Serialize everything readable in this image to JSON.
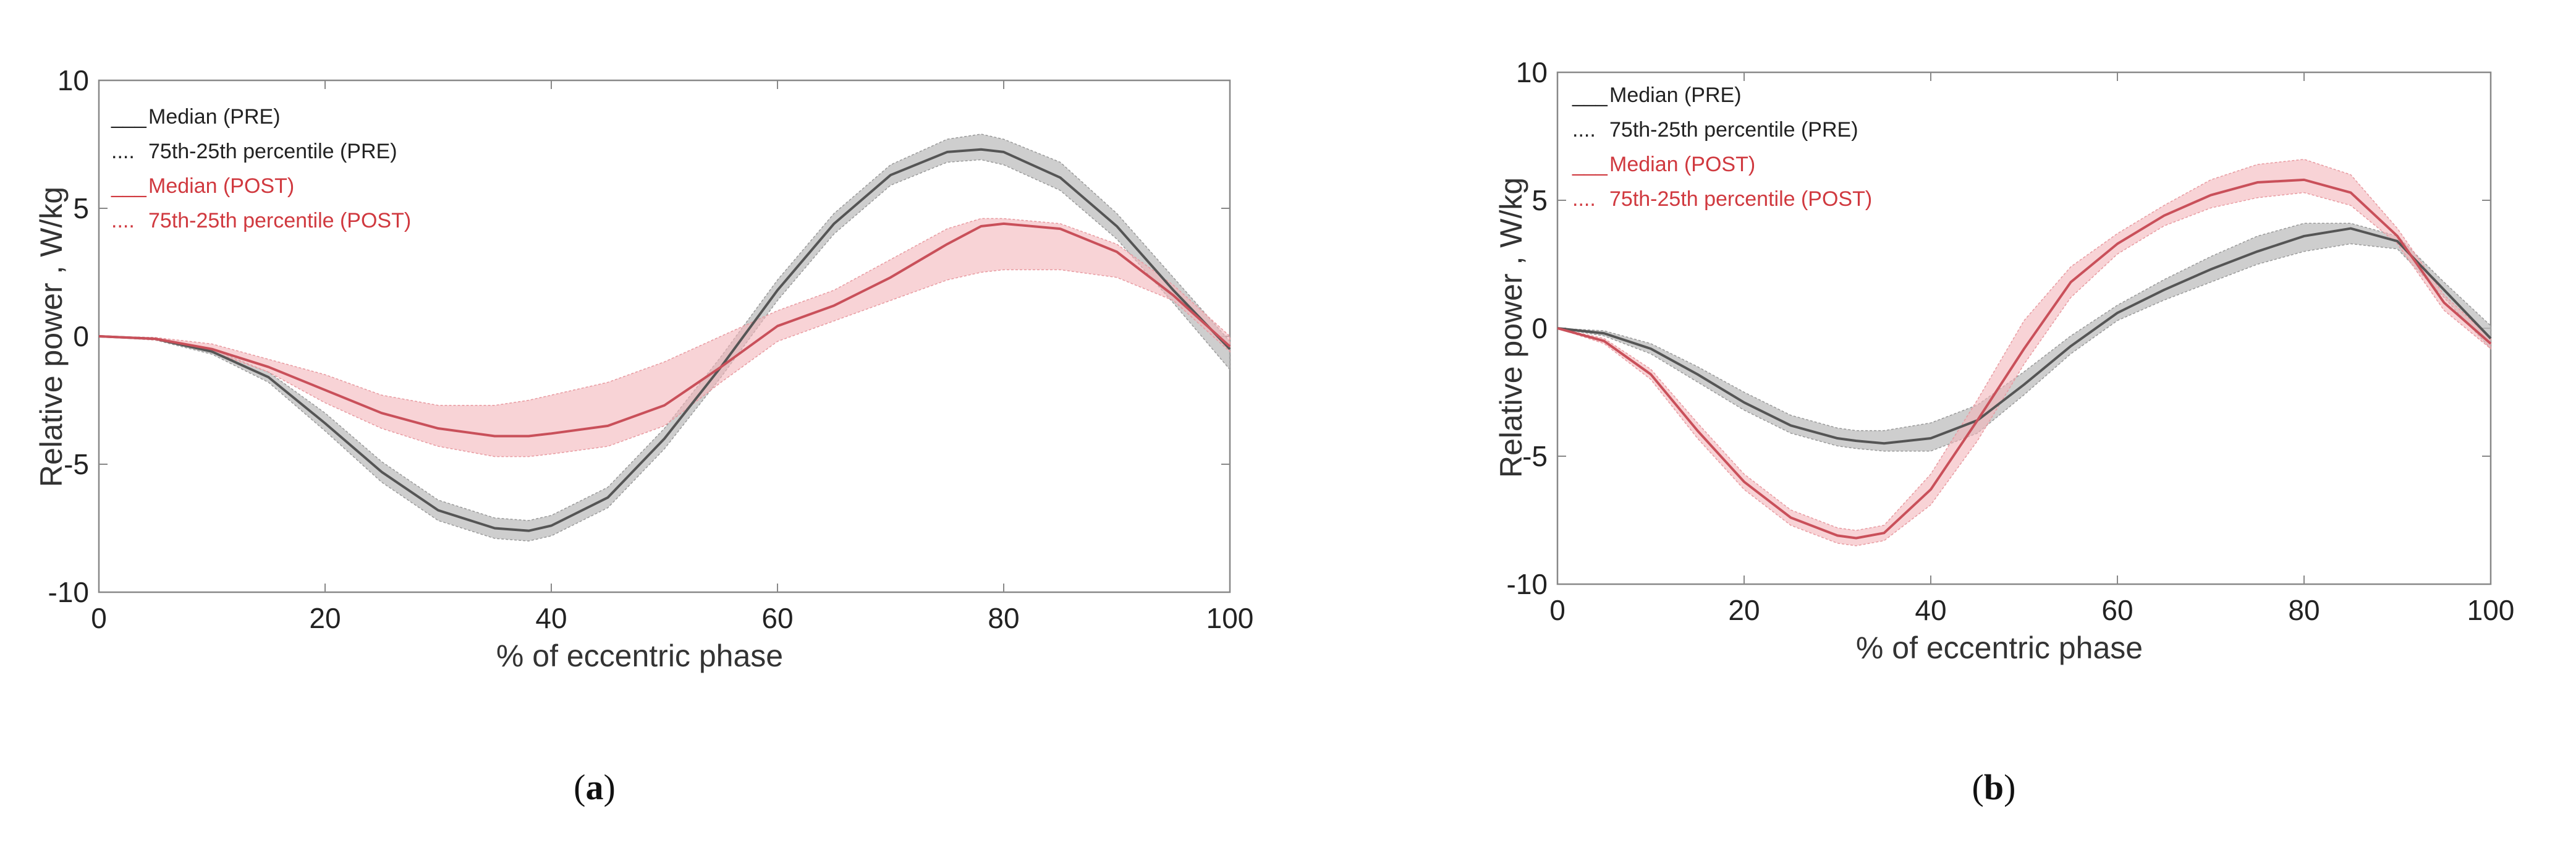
{
  "colors": {
    "pre_line": "#555555",
    "pre_band": "#bdbdbd",
    "post_line": "#c9505a",
    "post_band": "#f3b6bb",
    "axis": "#888888",
    "post_text": "#d0393f",
    "pre_text": "#222222"
  },
  "chart_data": [
    {
      "type": "line",
      "panel": "a",
      "caption_letter": "a",
      "xlabel": "% of eccentric phase",
      "ylabel": "Relative power   , W/kg",
      "xlim": [
        0,
        100
      ],
      "ylim": [
        -10,
        10
      ],
      "xticks": [
        "0",
        "20",
        "40",
        "60",
        "80",
        "100"
      ],
      "yticks": [
        "-10",
        "-5",
        "0",
        "5",
        "10"
      ],
      "legend": [
        {
          "marker": "___",
          "label": "Median (PRE)",
          "series": "pre"
        },
        {
          "marker": "....",
          "label": "75th-25th percentile (PRE)",
          "series": "pre"
        },
        {
          "marker": "___",
          "label": "Median (POST)",
          "series": "post"
        },
        {
          "marker": "....",
          "label": "75th-25th percentile (POST)",
          "series": "post"
        }
      ],
      "x": [
        0,
        5,
        10,
        15,
        20,
        25,
        30,
        35,
        38,
        40,
        45,
        50,
        55,
        60,
        65,
        70,
        75,
        78,
        80,
        85,
        90,
        95,
        100
      ],
      "series": [
        {
          "name": "Median (PRE)",
          "median": [
            0,
            -0.1,
            -0.6,
            -1.6,
            -3.4,
            -5.3,
            -6.8,
            -7.5,
            -7.6,
            -7.4,
            -6.3,
            -4.0,
            -1.2,
            1.8,
            4.4,
            6.3,
            7.2,
            7.3,
            7.2,
            6.2,
            4.3,
            1.8,
            -0.5
          ],
          "upper": [
            0,
            -0.05,
            -0.5,
            -1.4,
            -3.0,
            -4.9,
            -6.4,
            -7.1,
            -7.2,
            -7.0,
            -5.9,
            -3.6,
            -0.8,
            2.2,
            4.8,
            6.7,
            7.7,
            7.9,
            7.7,
            6.8,
            4.8,
            2.3,
            -0.2
          ],
          "lower": [
            0,
            -0.15,
            -0.7,
            -1.8,
            -3.7,
            -5.7,
            -7.2,
            -7.9,
            -8.0,
            -7.8,
            -6.7,
            -4.4,
            -1.6,
            1.4,
            4.0,
            5.9,
            6.8,
            6.9,
            6.7,
            5.7,
            3.8,
            1.3,
            -1.3
          ]
        },
        {
          "name": "Median (POST)",
          "median": [
            0,
            -0.1,
            -0.5,
            -1.2,
            -2.1,
            -3.0,
            -3.6,
            -3.9,
            -3.9,
            -3.8,
            -3.5,
            -2.7,
            -1.2,
            0.4,
            1.2,
            2.3,
            3.6,
            4.3,
            4.4,
            4.2,
            3.3,
            1.6,
            -0.4
          ],
          "upper": [
            0,
            -0.05,
            -0.3,
            -0.9,
            -1.5,
            -2.3,
            -2.7,
            -2.7,
            -2.5,
            -2.3,
            -1.8,
            -1.0,
            0.0,
            1.0,
            1.8,
            3.0,
            4.2,
            4.6,
            4.6,
            4.4,
            3.6,
            2.0,
            0.0
          ],
          "lower": [
            0,
            -0.15,
            -0.6,
            -1.4,
            -2.6,
            -3.6,
            -4.3,
            -4.7,
            -4.7,
            -4.6,
            -4.3,
            -3.5,
            -1.8,
            -0.2,
            0.6,
            1.4,
            2.2,
            2.5,
            2.6,
            2.6,
            2.3,
            1.4,
            -0.6
          ]
        }
      ]
    },
    {
      "type": "line",
      "panel": "b",
      "caption_letter": "b",
      "xlabel": "% of eccentric phase",
      "ylabel": "Relative power   , W/kg",
      "xlim": [
        0,
        100
      ],
      "ylim": [
        -10,
        10
      ],
      "xticks": [
        "0",
        "20",
        "40",
        "60",
        "80",
        "100"
      ],
      "yticks": [
        "-10",
        "-5",
        "0",
        "5",
        "10"
      ],
      "legend": [
        {
          "marker": "___",
          "label": "Median (PRE)",
          "series": "pre"
        },
        {
          "marker": "....",
          "label": "75th-25th percentile (PRE)",
          "series": "pre"
        },
        {
          "marker": "___",
          "label": "Median (POST)",
          "series": "post"
        },
        {
          "marker": "....",
          "label": "75th-25th percentile (POST)",
          "series": "post"
        }
      ],
      "x": [
        0,
        5,
        10,
        15,
        20,
        25,
        30,
        32,
        35,
        40,
        45,
        50,
        55,
        60,
        65,
        70,
        75,
        80,
        85,
        90,
        95,
        100
      ],
      "series": [
        {
          "name": "Median (PRE)",
          "median": [
            0,
            -0.2,
            -0.8,
            -1.8,
            -2.9,
            -3.8,
            -4.3,
            -4.4,
            -4.5,
            -4.3,
            -3.6,
            -2.2,
            -0.7,
            0.6,
            1.5,
            2.3,
            3.0,
            3.6,
            3.9,
            3.4,
            1.5,
            -0.4
          ],
          "upper": [
            0,
            -0.1,
            -0.6,
            -1.5,
            -2.5,
            -3.4,
            -3.9,
            -4.0,
            -4.0,
            -3.7,
            -3.0,
            -1.7,
            -0.3,
            0.9,
            1.9,
            2.8,
            3.6,
            4.1,
            4.1,
            3.6,
            1.8,
            0.1
          ],
          "lower": [
            0,
            -0.3,
            -1.0,
            -2.1,
            -3.2,
            -4.1,
            -4.6,
            -4.7,
            -4.8,
            -4.8,
            -4.1,
            -2.6,
            -1.0,
            0.3,
            1.1,
            1.8,
            2.5,
            3.0,
            3.3,
            3.1,
            1.2,
            -0.8
          ]
        },
        {
          "name": "Median (POST)",
          "median": [
            0,
            -0.5,
            -1.8,
            -4.0,
            -6.0,
            -7.4,
            -8.1,
            -8.2,
            -8.0,
            -6.3,
            -3.6,
            -0.8,
            1.8,
            3.3,
            4.4,
            5.2,
            5.7,
            5.8,
            5.3,
            3.6,
            1.0,
            -0.6
          ],
          "upper": [
            0,
            -0.4,
            -1.6,
            -3.7,
            -5.7,
            -7.1,
            -7.8,
            -7.9,
            -7.7,
            -5.7,
            -2.8,
            0.3,
            2.4,
            3.7,
            4.8,
            5.8,
            6.4,
            6.6,
            6.0,
            3.9,
            1.3,
            -0.4
          ],
          "lower": [
            0,
            -0.6,
            -2.0,
            -4.3,
            -6.3,
            -7.7,
            -8.4,
            -8.5,
            -8.3,
            -6.9,
            -4.4,
            -1.4,
            1.2,
            2.9,
            4.0,
            4.7,
            5.1,
            5.3,
            4.8,
            3.3,
            0.7,
            -0.8
          ]
        }
      ]
    }
  ]
}
